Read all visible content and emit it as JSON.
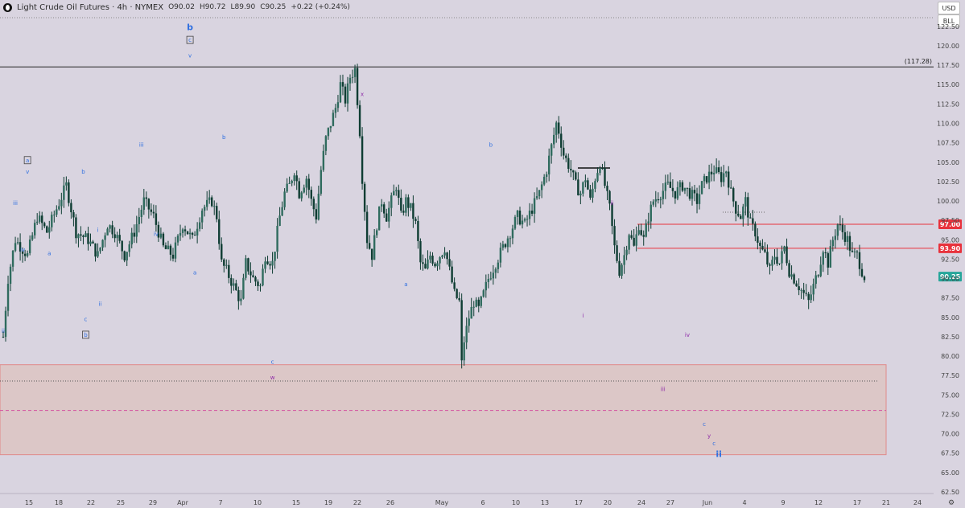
{
  "header": {
    "title": "Light Crude Oil Futures · 4h · NYMEX",
    "open": "O90.02",
    "high": "H90.72",
    "low": "L89.90",
    "close": "C90.25",
    "change": "+0.22 (+0.24%)"
  },
  "top_right": {
    "currency": "USD",
    "unit": "BLL"
  },
  "colors": {
    "background": "#d9d4e0",
    "candle": "#0f3d33",
    "resistance": "#e8323c",
    "last_price": "#26a69a",
    "wave_blue": "#2f6fe0",
    "wave_purple": "#8e2aa8",
    "zone_fill": "#dcc3bf",
    "zone_border": "#e08a8a"
  },
  "chart_data": {
    "type": "candlestick",
    "symbol": "Light Crude Oil Futures",
    "interval": "4h",
    "exchange": "NYMEX",
    "ylim": [
      62.5,
      123
    ],
    "y_ticks": [
      122.5,
      120.0,
      117.5,
      115.0,
      112.5,
      110.0,
      107.5,
      105.0,
      102.5,
      100.0,
      97.5,
      95.0,
      92.5,
      90.0,
      87.5,
      85.0,
      82.5,
      80.0,
      77.5,
      75.0,
      72.5,
      70.0,
      67.5,
      65.0,
      62.5
    ],
    "x_ticks": [
      "15",
      "18",
      "22",
      "25",
      "29",
      "Apr",
      "7",
      "10",
      "15",
      "19",
      "22",
      "26",
      "May",
      "6",
      "10",
      "13",
      "17",
      "20",
      "24",
      "27",
      "Jun",
      "4",
      "9",
      "12",
      "17",
      "21",
      "24"
    ],
    "price_path": [
      [
        0,
        82.5
      ],
      [
        2,
        90
      ],
      [
        5,
        95
      ],
      [
        10,
        93
      ],
      [
        14,
        98
      ],
      [
        18,
        96
      ],
      [
        22,
        99
      ],
      [
        26,
        102
      ],
      [
        30,
        96
      ],
      [
        35,
        95
      ],
      [
        39,
        93
      ],
      [
        43,
        97
      ],
      [
        46,
        96
      ],
      [
        50,
        93
      ],
      [
        54,
        96
      ],
      [
        58,
        100
      ],
      [
        62,
        98
      ],
      [
        66,
        94
      ],
      [
        70,
        93
      ],
      [
        74,
        97
      ],
      [
        78,
        95
      ],
      [
        82,
        99
      ],
      [
        86,
        100
      ],
      [
        88,
        98
      ],
      [
        90,
        92
      ],
      [
        92,
        91
      ],
      [
        95,
        89
      ],
      [
        98,
        87
      ],
      [
        100,
        92
      ],
      [
        103,
        90
      ],
      [
        106,
        89
      ],
      [
        108,
        93
      ],
      [
        111,
        92
      ],
      [
        114,
        98
      ],
      [
        116,
        101
      ],
      [
        118,
        102
      ],
      [
        120,
        104
      ],
      [
        122,
        101
      ],
      [
        125,
        103
      ],
      [
        127,
        100
      ],
      [
        129,
        98
      ],
      [
        131,
        104
      ],
      [
        133,
        108
      ],
      [
        135,
        110
      ],
      [
        137,
        112
      ],
      [
        139,
        115
      ],
      [
        141,
        113
      ],
      [
        143,
        116
      ],
      [
        145,
        117
      ],
      [
        146,
        113
      ],
      [
        147,
        109
      ],
      [
        148,
        103
      ],
      [
        150,
        95
      ],
      [
        152,
        93
      ],
      [
        154,
        97
      ],
      [
        156,
        100
      ],
      [
        158,
        98
      ],
      [
        160,
        100
      ],
      [
        162,
        102
      ],
      [
        164,
        98
      ],
      [
        166,
        100
      ],
      [
        168,
        99
      ],
      [
        170,
        97
      ],
      [
        172,
        92
      ],
      [
        174,
        91
      ],
      [
        176,
        93
      ],
      [
        178,
        92
      ],
      [
        180,
        93
      ],
      [
        182,
        94
      ],
      [
        184,
        91
      ],
      [
        186,
        88
      ],
      [
        188,
        87
      ],
      [
        189,
        79
      ],
      [
        190,
        82
      ],
      [
        192,
        85
      ],
      [
        194,
        87
      ],
      [
        196,
        86
      ],
      [
        198,
        88
      ],
      [
        200,
        90
      ],
      [
        203,
        92
      ],
      [
        206,
        94
      ],
      [
        209,
        96
      ],
      [
        212,
        98
      ],
      [
        215,
        97
      ],
      [
        218,
        99
      ],
      [
        221,
        101
      ],
      [
        224,
        104
      ],
      [
        226,
        107
      ],
      [
        228,
        110
      ],
      [
        229,
        109
      ],
      [
        231,
        106
      ],
      [
        234,
        104
      ],
      [
        236,
        102
      ],
      [
        238,
        101
      ],
      [
        240,
        103
      ],
      [
        242,
        100
      ],
      [
        244,
        103
      ],
      [
        246,
        105
      ],
      [
        248,
        102
      ],
      [
        250,
        99
      ],
      [
        252,
        94
      ],
      [
        254,
        91
      ],
      [
        256,
        93
      ],
      [
        258,
        96
      ],
      [
        260,
        94
      ],
      [
        262,
        97
      ],
      [
        264,
        95
      ],
      [
        266,
        98
      ],
      [
        268,
        100
      ],
      [
        271,
        101
      ],
      [
        274,
        102
      ],
      [
        277,
        101
      ],
      [
        280,
        102
      ],
      [
        283,
        101
      ],
      [
        286,
        100
      ],
      [
        288,
        102
      ],
      [
        290,
        103
      ],
      [
        293,
        104
      ],
      [
        296,
        103
      ],
      [
        298,
        104
      ],
      [
        300,
        101
      ],
      [
        302,
        99
      ],
      [
        304,
        98
      ],
      [
        306,
        100
      ],
      [
        308,
        97
      ],
      [
        310,
        96
      ],
      [
        312,
        94
      ],
      [
        314,
        93
      ],
      [
        316,
        91
      ],
      [
        318,
        93
      ],
      [
        320,
        92
      ],
      [
        322,
        94
      ],
      [
        324,
        91
      ],
      [
        326,
        90
      ],
      [
        328,
        89
      ],
      [
        330,
        88
      ],
      [
        332,
        87
      ],
      [
        334,
        89
      ],
      [
        336,
        91
      ],
      [
        338,
        94
      ],
      [
        340,
        92
      ],
      [
        342,
        95
      ],
      [
        344,
        97
      ],
      [
        346,
        96
      ],
      [
        348,
        95
      ],
      [
        350,
        93
      ],
      [
        352,
        93
      ],
      [
        354,
        91
      ],
      [
        355,
        90.25
      ]
    ],
    "horizontal_levels": [
      {
        "label": "(117.28)",
        "value": 117.28,
        "color": "#222222"
      },
      {
        "label": "97.00",
        "value": 97.0,
        "color": "#e8323c"
      },
      {
        "label": "93.90",
        "value": 93.9,
        "color": "#e8323c"
      }
    ],
    "last_price": {
      "label": "90.25",
      "value": 90.25
    },
    "target_zone": {
      "upper": 78.9,
      "lower": 67.3
    },
    "zone_lines": [
      {
        "value": 76.8,
        "style": "dotted"
      },
      {
        "value": 73.0,
        "style": "dashed"
      }
    ],
    "wave_labels": [
      {
        "text": "ii",
        "x": 0,
        "y": 83,
        "color": "blue"
      },
      {
        "text": "iii",
        "x": 5,
        "y": 99.5,
        "color": "blue"
      },
      {
        "text": "iv",
        "x": 8,
        "y": 93.5,
        "color": "blue"
      },
      {
        "text": "a",
        "x": 10,
        "y": 105,
        "color": "blue",
        "boxed": true
      },
      {
        "text": "v",
        "x": 10,
        "y": 103.5,
        "color": "blue"
      },
      {
        "text": "a",
        "x": 19,
        "y": 93,
        "color": "blue"
      },
      {
        "text": "b",
        "x": 33,
        "y": 103.5,
        "color": "blue"
      },
      {
        "text": "i",
        "x": 39,
        "y": 96,
        "color": "blue"
      },
      {
        "text": "c",
        "x": 34,
        "y": 84.5,
        "color": "blue"
      },
      {
        "text": "b",
        "x": 34,
        "y": 82.5,
        "color": "blue",
        "boxed": true
      },
      {
        "text": "ii",
        "x": 40,
        "y": 86.5,
        "color": "blue"
      },
      {
        "text": "iii",
        "x": 57,
        "y": 107,
        "color": "blue"
      },
      {
        "text": "iv",
        "x": 63,
        "y": 95.5,
        "color": "blue"
      },
      {
        "text": "b",
        "x": 77,
        "y": 122,
        "color": "blue",
        "large": true
      },
      {
        "text": "c",
        "x": 77,
        "y": 120.5,
        "color": "blue",
        "boxed": true
      },
      {
        "text": "v",
        "x": 77,
        "y": 118.5,
        "color": "blue"
      },
      {
        "text": "a",
        "x": 79,
        "y": 90.5,
        "color": "blue"
      },
      {
        "text": "b",
        "x": 91,
        "y": 108,
        "color": "blue"
      },
      {
        "text": "c",
        "x": 111,
        "y": 79,
        "color": "blue"
      },
      {
        "text": "w",
        "x": 111,
        "y": 77,
        "color": "purple"
      },
      {
        "text": "x",
        "x": 148,
        "y": 113.5,
        "color": "purple"
      },
      {
        "text": "a",
        "x": 166,
        "y": 89,
        "color": "blue"
      },
      {
        "text": "b",
        "x": 201,
        "y": 107,
        "color": "blue"
      },
      {
        "text": "ii",
        "x": 251,
        "y": 99.5,
        "color": "purple"
      },
      {
        "text": "i",
        "x": 239,
        "y": 85,
        "color": "purple"
      },
      {
        "text": "iv",
        "x": 282,
        "y": 82.5,
        "color": "purple"
      },
      {
        "text": "iii",
        "x": 272,
        "y": 75.5,
        "color": "purple"
      },
      {
        "text": "c",
        "x": 289,
        "y": 71,
        "color": "blue"
      },
      {
        "text": "y",
        "x": 291,
        "y": 69.5,
        "color": "purple"
      },
      {
        "text": "c",
        "x": 293,
        "y": 68.5,
        "color": "blue"
      },
      {
        "text": "ii",
        "x": 295,
        "y": 67,
        "color": "blue",
        "large": true
      }
    ]
  }
}
